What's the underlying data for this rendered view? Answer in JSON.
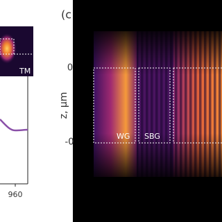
{
  "panel_label": "(c",
  "inset_label": "TM",
  "x_tick": "960",
  "y_axis_label": "z, μm",
  "y_ticks": [
    "0",
    "-0"
  ],
  "regions": [
    "WG",
    "SBG"
  ]
}
